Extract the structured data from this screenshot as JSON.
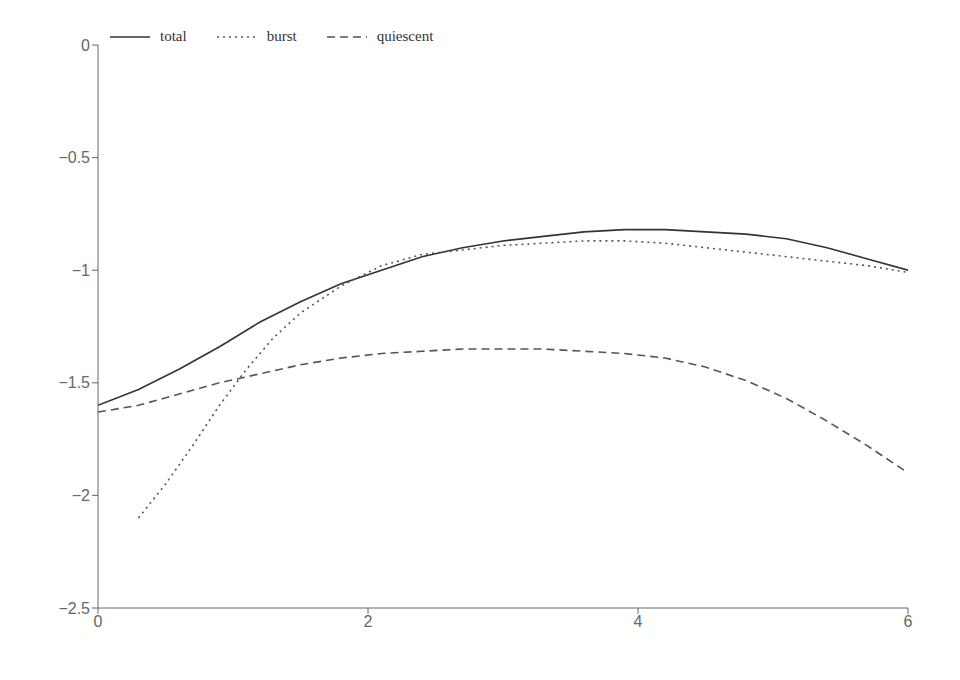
{
  "chart_data": {
    "type": "line",
    "xlim": [
      0,
      6
    ],
    "ylim": [
      -2.5,
      0
    ],
    "xticks": [
      0,
      2,
      4,
      6
    ],
    "yticks": [
      0,
      {
        "value": -0.5,
        "label": "−0.5"
      },
      {
        "value": -1.0,
        "label": "−1"
      },
      {
        "value": -1.5,
        "label": "−1.5"
      },
      {
        "value": -2.0,
        "label": "−2"
      },
      {
        "value": -2.5,
        "label": "−2.5"
      }
    ],
    "grid": false,
    "legend": "upper left",
    "series": [
      {
        "name": "total",
        "color": "#333333",
        "line_style": "solid",
        "x": [
          0.0,
          0.3,
          0.6,
          0.9,
          1.2,
          1.5,
          1.8,
          2.1,
          2.4,
          2.7,
          3.0,
          3.3,
          3.6,
          3.9,
          4.2,
          4.5,
          4.8,
          5.1,
          5.4,
          5.7,
          6.0
        ],
        "values": [
          -1.6,
          -1.53,
          -1.44,
          -1.34,
          -1.23,
          -1.14,
          -1.06,
          -1.0,
          -0.94,
          -0.9,
          -0.87,
          -0.85,
          -0.83,
          -0.82,
          -0.82,
          -0.83,
          -0.84,
          -0.86,
          -0.9,
          -0.95,
          -1.0
        ]
      },
      {
        "name": "burst",
        "color": "#555555",
        "line_style": "dotted",
        "x": [
          0.3,
          0.5,
          0.7,
          0.9,
          1.1,
          1.3,
          1.5,
          1.8,
          2.1,
          2.4,
          2.7,
          3.0,
          3.3,
          3.6,
          3.9,
          4.2,
          4.5,
          4.8,
          5.1,
          5.4,
          5.7,
          6.0
        ],
        "values": [
          -2.1,
          -1.95,
          -1.78,
          -1.6,
          -1.44,
          -1.3,
          -1.19,
          -1.07,
          -0.98,
          -0.93,
          -0.91,
          -0.89,
          -0.88,
          -0.87,
          -0.87,
          -0.88,
          -0.9,
          -0.92,
          -0.94,
          -0.96,
          -0.98,
          -1.01
        ]
      },
      {
        "name": "quiescent",
        "color": "#555555",
        "line_style": "dashed",
        "x": [
          0.0,
          0.3,
          0.6,
          0.9,
          1.2,
          1.5,
          1.8,
          2.1,
          2.4,
          2.7,
          3.0,
          3.3,
          3.6,
          3.9,
          4.2,
          4.5,
          4.8,
          5.1,
          5.4,
          5.7,
          6.0
        ],
        "values": [
          -1.63,
          -1.6,
          -1.55,
          -1.5,
          -1.46,
          -1.42,
          -1.39,
          -1.37,
          -1.36,
          -1.35,
          -1.35,
          -1.35,
          -1.36,
          -1.37,
          -1.39,
          -1.43,
          -1.49,
          -1.57,
          -1.67,
          -1.78,
          -1.9
        ]
      }
    ]
  }
}
